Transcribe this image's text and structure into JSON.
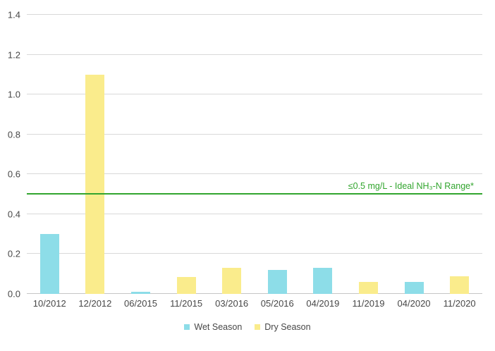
{
  "chart_data": {
    "type": "bar",
    "title": "",
    "xlabel": "",
    "ylabel": "",
    "ylim": [
      0,
      1.4
    ],
    "yticks": [
      0.0,
      0.2,
      0.4,
      0.6,
      0.8,
      1.0,
      1.2,
      1.4
    ],
    "grid": true,
    "legend_position": "bottom",
    "categories": [
      "10/2012",
      "12/2012",
      "06/2015",
      "11/2015",
      "03/2016",
      "05/2016",
      "04/2019",
      "11/2019",
      "04/2020",
      "11/2020"
    ],
    "series": [
      {
        "name": "Wet Season",
        "color": "#8DDDE8",
        "values": [
          0.3,
          null,
          0.01,
          null,
          null,
          0.12,
          0.13,
          null,
          0.06,
          null
        ]
      },
      {
        "name": "Dry Season",
        "color": "#FAEC8C",
        "values": [
          null,
          1.1,
          null,
          0.085,
          0.13,
          null,
          null,
          0.06,
          null,
          0.09
        ]
      }
    ],
    "reference_line": {
      "value": 0.5,
      "label": "≤0.5 mg/L - Ideal NH₃-N Range*",
      "color": "#32A52E"
    }
  },
  "colors": {
    "gridline": "#d9d9d9",
    "axis_line": "#c6c6c6",
    "axis_text": "#474747",
    "background": "#ffffff"
  }
}
